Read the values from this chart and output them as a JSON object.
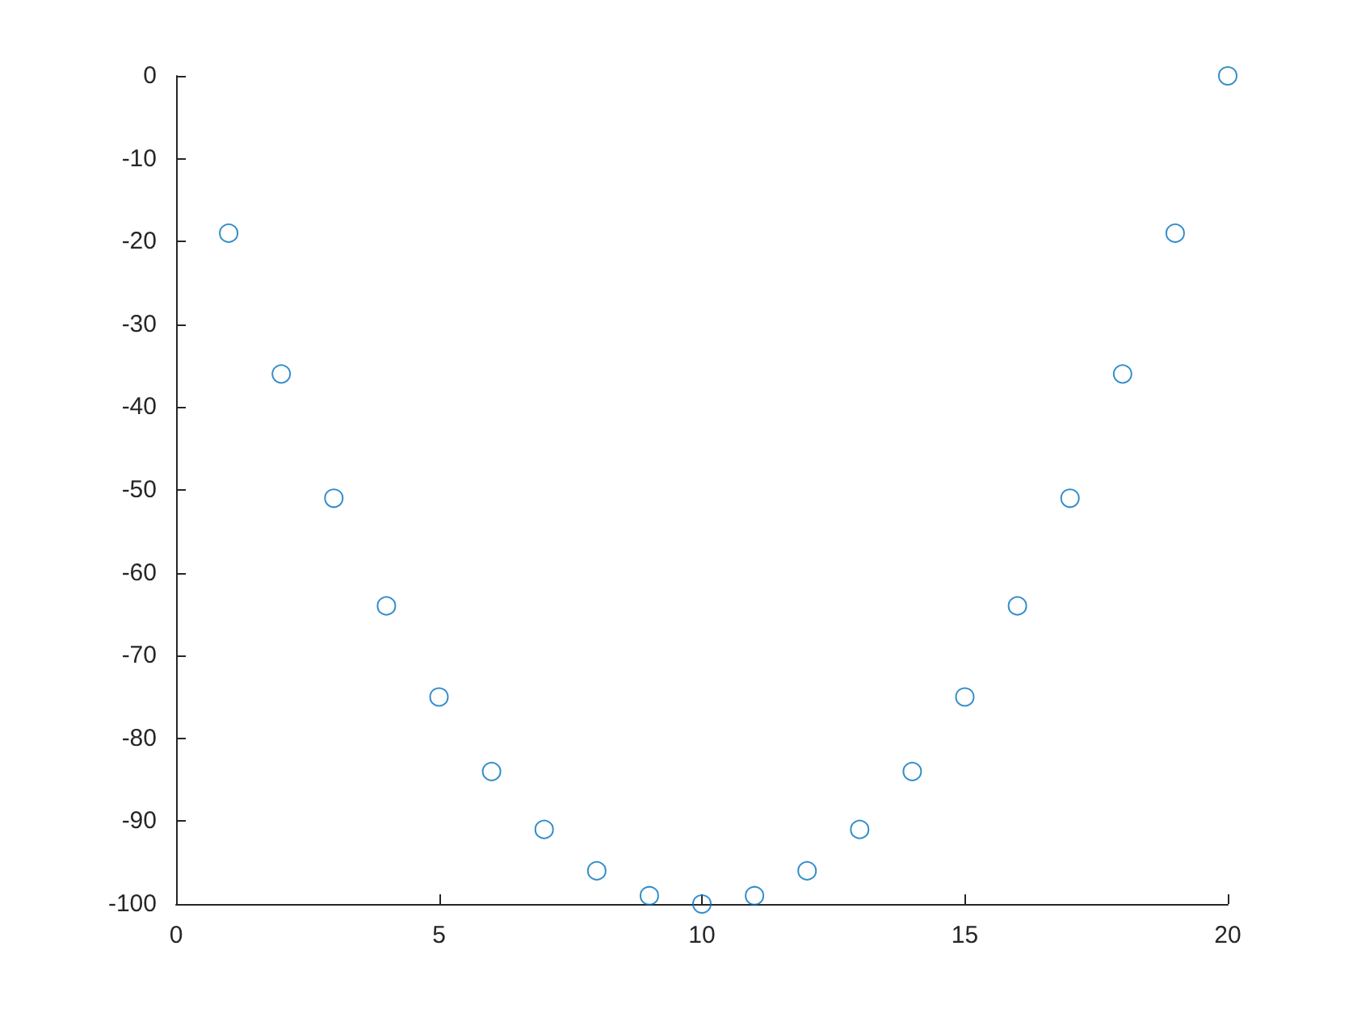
{
  "chart_data": {
    "type": "scatter",
    "x": [
      1,
      2,
      3,
      4,
      5,
      6,
      7,
      8,
      9,
      10,
      11,
      12,
      13,
      14,
      15,
      16,
      17,
      18,
      19,
      20
    ],
    "values": [
      -19,
      -36,
      -51,
      -64,
      -75,
      -84,
      -91,
      -96,
      -99,
      -100,
      -99,
      -96,
      -91,
      -84,
      -75,
      -64,
      -51,
      -36,
      -19,
      0
    ],
    "color": "#0072bd",
    "marker": "circle",
    "xlim": [
      0,
      20
    ],
    "xticks": [
      0,
      5,
      10,
      15,
      20
    ],
    "ylim": [
      -100,
      0
    ],
    "yticks": [
      -100,
      -90,
      -80,
      -70,
      -60,
      -50,
      -40,
      -30,
      -20,
      -10,
      0
    ]
  }
}
